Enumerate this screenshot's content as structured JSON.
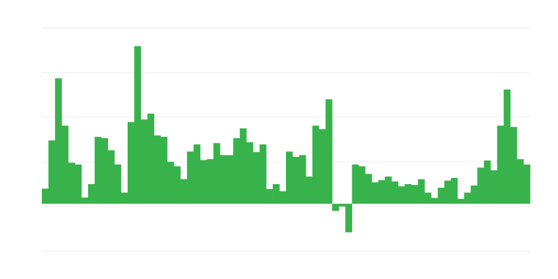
{
  "chart_data": {
    "type": "bar",
    "title": "",
    "xlabel": "",
    "ylabel": "",
    "ylim": [
      -1.06,
      3.94
    ],
    "grid": true,
    "legend": "none",
    "bar_color": "#38b24a",
    "grid_color": "#eeeeee",
    "values": [
      0.34,
      1.42,
      2.81,
      1.75,
      0.92,
      0.88,
      0.14,
      0.44,
      1.5,
      1.47,
      1.2,
      0.88,
      0.25,
      1.83,
      3.53,
      1.89,
      2.02,
      1.53,
      1.5,
      0.94,
      0.84,
      0.55,
      1.17,
      1.33,
      0.98,
      1.0,
      1.36,
      1.09,
      1.09,
      1.47,
      1.69,
      1.38,
      1.16,
      1.33,
      0.33,
      0.44,
      0.28,
      1.17,
      1.05,
      1.09,
      0.61,
      1.75,
      1.67,
      2.34,
      -0.16,
      -0.06,
      -0.64,
      0.88,
      0.84,
      0.67,
      0.48,
      0.53,
      0.61,
      0.5,
      0.39,
      0.44,
      0.42,
      0.55,
      0.25,
      0.13,
      0.36,
      0.52,
      0.58,
      0.11,
      0.25,
      0.41,
      0.81,
      0.97,
      0.75,
      1.75,
      2.56,
      1.72,
      1.0,
      0.88
    ]
  }
}
